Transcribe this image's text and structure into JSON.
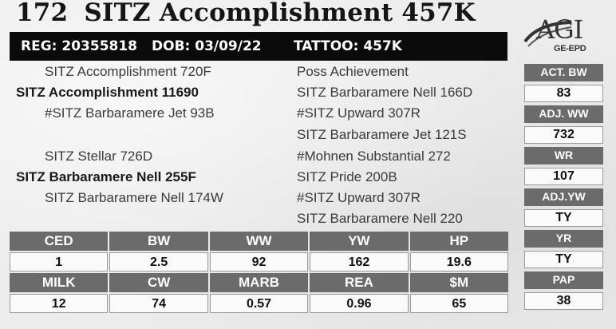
{
  "title": {
    "lot": "172",
    "name": "SITZ Accomplishment 457K"
  },
  "reg_bar": {
    "reg": "REG: 20355818",
    "dob": "DOB: 03/09/22",
    "tattoo": "TATTOO: 457K"
  },
  "logo": {
    "main": "AGI",
    "sub": "GE-EPD"
  },
  "pedigree": [
    {
      "text": "SITZ Accomplishment 720F",
      "bold": false
    },
    {
      "text": "SITZ Accomplishment 11690",
      "bold": true
    },
    {
      "text": "#SITZ Barbaramere Jet 93B",
      "bold": false
    },
    {
      "text": "SITZ Stellar 726D",
      "bold": false
    },
    {
      "text": "SITZ Barbaramere Nell 255F",
      "bold": true
    },
    {
      "text": "SITZ Barbaramere Nell 174W",
      "bold": false
    },
    {
      "text": "Poss Achievement",
      "bold": false
    },
    {
      "text": "SITZ Barbaramere Nell 166D",
      "bold": false
    },
    {
      "text": "#SITZ Upward 307R",
      "bold": false
    },
    {
      "text": "SITZ Barbaramere Jet 121S",
      "bold": false
    },
    {
      "text": "#Mohnen Substantial 272",
      "bold": false
    },
    {
      "text": "SITZ Pride 200B",
      "bold": false
    },
    {
      "text": "#SITZ Upward 307R",
      "bold": false
    },
    {
      "text": "SITZ Barbaramere Nell 220",
      "bold": false
    }
  ],
  "side_stats": [
    {
      "label": "ACT. BW",
      "value": "83"
    },
    {
      "label": "ADJ. WW",
      "value": "732"
    },
    {
      "label": "WR",
      "value": "107"
    },
    {
      "label": "ADJ.YW",
      "value": "TY"
    },
    {
      "label": "YR",
      "value": "TY"
    },
    {
      "label": "PAP",
      "value": "38"
    }
  ],
  "epd_rows": [
    {
      "headers": [
        "CED",
        "BW",
        "WW",
        "YW",
        "HP"
      ],
      "values": [
        "1",
        "2.5",
        "92",
        "162",
        "19.6"
      ]
    },
    {
      "headers": [
        "MILK",
        "CW",
        "MARB",
        "REA",
        "$M"
      ],
      "values": [
        "12",
        "74",
        "0.57",
        "0.96",
        "65"
      ]
    }
  ]
}
